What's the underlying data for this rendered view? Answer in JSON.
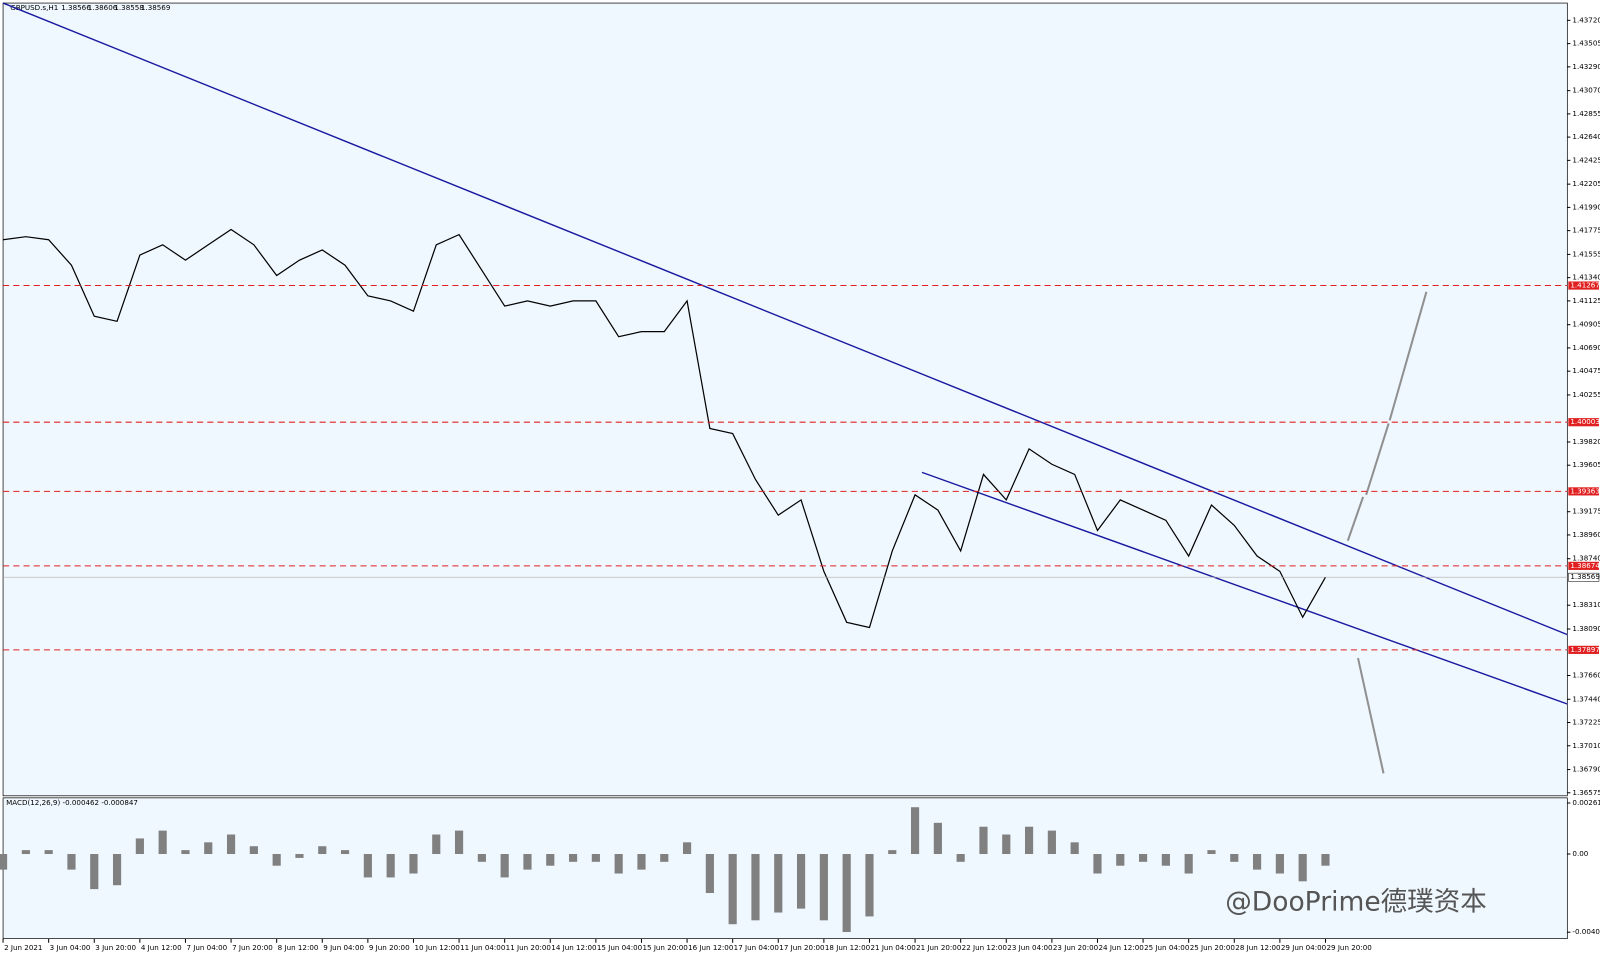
{
  "header": {
    "symbol": "GBPUSD.s,H1",
    "open": "1.38566",
    "high": "1.38606",
    "low": "1.38558",
    "close": "1.38569"
  },
  "chart_data": [
    {
      "type": "line",
      "name": "price",
      "categories": [
        "2 Jun 2021",
        null,
        "3 Jun 04:00",
        null,
        "3 Jun 20:00",
        null,
        "4 Jun 12:00",
        null,
        "7 Jun 04:00",
        null,
        "7 Jun 20:00",
        null,
        "8 Jun 12:00",
        null,
        "9 Jun 04:00",
        null,
        "9 Jun 20:00",
        null,
        "10 Jun 12:00",
        null,
        "11 Jun 04:00",
        null,
        "11 Jun 20:00",
        null,
        "14 Jun 12:00",
        null,
        "15 Jun 04:00",
        null,
        "15 Jun 20:00",
        null,
        "16 Jun 12:00",
        null,
        "17 Jun 04:00",
        null,
        "17 Jun 20:00",
        null,
        "18 Jun 12:00",
        null,
        "21 Jun 04:00",
        null,
        "21 Jun 20:00",
        null,
        "22 Jun 12:00",
        null,
        "23 Jun 04:00",
        null,
        "23 Jun 20:00",
        null,
        "24 Jun 12:00",
        null,
        "25 Jun 04:00",
        null,
        "25 Jun 20:00",
        null,
        "28 Jun 12:00",
        null,
        "29 Jun 04:00",
        null,
        "29 Jun 20:00"
      ],
      "series": [
        {
          "name": "GBPUSD.s",
          "color": "#000000",
          "values": [
            1.41691,
            1.41719,
            1.41691,
            1.41455,
            1.40983,
            1.40936,
            1.41549,
            1.41644,
            1.41502,
            1.41644,
            1.41785,
            1.41644,
            1.4136,
            1.41502,
            1.41596,
            1.41455,
            1.41172,
            1.41125,
            1.4103,
            1.41644,
            1.41738,
            1.41408,
            1.41077,
            1.41125,
            1.41077,
            1.41125,
            1.41125,
            1.40794,
            1.40841,
            1.40841,
            1.41125,
            1.39945,
            1.39898,
            1.39473,
            1.39143,
            1.39284,
            1.38623,
            1.38152,
            1.38104,
            1.38812,
            1.39331,
            1.3919,
            1.38812,
            1.3952,
            1.39284,
            1.39756,
            1.39614,
            1.3952,
            1.39001,
            1.39284,
            1.3919,
            1.39095,
            1.38765,
            1.39237,
            1.39048,
            1.38765,
            1.38623,
            1.38199,
            1.38569
          ]
        }
      ],
      "ylim": [
        1.36547,
        1.4388
      ],
      "yticks": [
        {
          "value": 1.4372,
          "label": "1.43720"
        },
        1.43505,
        {
          "value": 1.4329,
          "label": "1.43290"
        },
        {
          "value": 1.4307,
          "label": "1.43070"
        },
        1.42855,
        {
          "value": 1.4264,
          "label": "1.42640"
        },
        1.42425,
        1.42205,
        {
          "value": 1.4199,
          "label": "1.41990"
        },
        1.41775,
        1.41555,
        {
          "value": 1.4134,
          "label": "1.41340"
        },
        1.41125,
        1.40905,
        {
          "value": 1.4069,
          "label": "1.40690"
        },
        1.40475,
        1.40255,
        {
          "value": 1.3982,
          "label": "1.39820"
        },
        1.39605,
        1.39175,
        {
          "value": 1.3896,
          "label": "1.38960"
        },
        {
          "value": 1.3874,
          "label": "1.38740"
        },
        {
          "value": 1.3831,
          "label": "1.38310"
        },
        {
          "value": 1.3809,
          "label": "1.38090"
        },
        {
          "value": 1.3766,
          "label": "1.37660"
        },
        {
          "value": 1.3744,
          "label": "1.37440"
        },
        1.37225,
        {
          "value": 1.3701,
          "label": "1.37010"
        },
        {
          "value": 1.3679,
          "label": "1.36790"
        },
        1.36575
      ],
      "levels": [
        1.41267,
        1.40003,
        1.39363,
        1.38674,
        1.37897
      ],
      "level_color": "#e02020",
      "current_price": 1.38569
    },
    {
      "type": "bar",
      "title": "MACD(12,26,9) -0.000462 -0.000847",
      "color": "#808080",
      "values": [
        -0.0008,
        0.0002,
        0.0002,
        -0.0008,
        -0.0018,
        -0.0016,
        0.0008,
        0.0012,
        0.0002,
        0.0006,
        0.001,
        0.0004,
        -0.0006,
        -0.0002,
        0.0004,
        0.0002,
        -0.0012,
        -0.0012,
        -0.001,
        0.001,
        0.0012,
        -0.0004,
        -0.0012,
        -0.0008,
        -0.0006,
        -0.0004,
        -0.0004,
        -0.001,
        -0.0008,
        -0.0004,
        0.0006,
        -0.002,
        -0.0036,
        -0.0034,
        -0.003,
        -0.0028,
        -0.0034,
        -0.004,
        -0.0032,
        0.0002,
        0.0024,
        0.0016,
        -0.0004,
        0.0014,
        0.001,
        0.0014,
        0.0012,
        0.0006,
        -0.001,
        -0.0006,
        -0.0004,
        -0.0006,
        -0.001,
        0.0002,
        -0.0004,
        -0.0008,
        -0.001,
        -0.0014,
        -0.0006
      ],
      "ylim": [
        -0.00434,
        0.00288
      ],
      "yticks": [
        0.002616,
        {
          "value": 0,
          "label": "0.00"
        },
        -0.00401
      ]
    }
  ],
  "watermark": "@DooPrime德璞资本"
}
